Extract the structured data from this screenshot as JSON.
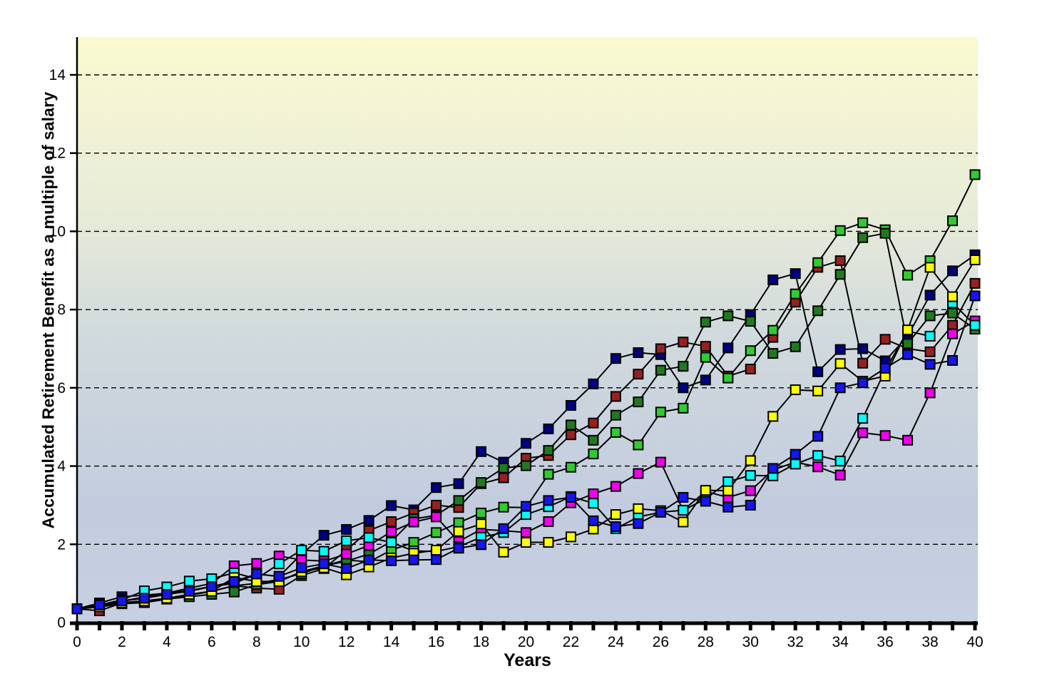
{
  "chart": {
    "y_axis_title": "Accumulated Retirement Benefit as a multiple of salary",
    "x_axis_title": "Years"
  },
  "chart_data": {
    "type": "line",
    "title": "",
    "xlabel": "Years",
    "ylabel": "Accumulated Retirement Benefit as a multiple of salary",
    "xlim": [
      0,
      40
    ],
    "ylim": [
      0,
      15
    ],
    "x_ticks_every": 1,
    "x_labels_every": 2,
    "y_ticks": [
      0,
      2,
      4,
      6,
      8,
      10,
      12,
      14
    ],
    "grid": "horizontal-dashed",
    "legend": "none",
    "marker": "square",
    "marker_size": 13,
    "line_color": "#000000",
    "plot_bg_gradient": [
      "#FAFAD0",
      "#E9EDD8",
      "#D0D9DD",
      "#C2CCDE",
      "#C6D0E2"
    ],
    "x": [
      0,
      1,
      2,
      3,
      4,
      5,
      6,
      7,
      8,
      9,
      10,
      11,
      12,
      13,
      14,
      15,
      16,
      17,
      18,
      19,
      20,
      21,
      22,
      23,
      24,
      25,
      26,
      27,
      28,
      29,
      30,
      31,
      32,
      33,
      34,
      35,
      36,
      37,
      38,
      39,
      40
    ],
    "series": [
      {
        "name": "navy",
        "color": "#000080",
        "values": [
          0.35,
          0.5,
          0.66,
          0.7,
          0.75,
          0.82,
          0.92,
          1.0,
          1.24,
          1.18,
          1.75,
          2.23,
          2.38,
          2.61,
          2.99,
          2.88,
          3.45,
          3.55,
          4.37,
          4.1,
          4.58,
          4.95,
          5.55,
          6.1,
          6.75,
          6.9,
          6.85,
          6.0,
          6.2,
          7.02,
          7.87,
          8.76,
          8.92,
          6.41,
          6.98,
          7.0,
          6.69,
          7.32,
          8.37,
          8.99,
          9.4
        ]
      },
      {
        "name": "dark-red",
        "color": "#992020",
        "values": [
          0.35,
          0.3,
          0.5,
          0.51,
          0.6,
          0.7,
          0.8,
          0.94,
          0.88,
          0.85,
          1.2,
          1.38,
          1.85,
          2.35,
          2.58,
          2.8,
          3.0,
          2.94,
          3.55,
          3.7,
          4.2,
          4.27,
          4.8,
          5.1,
          5.78,
          6.35,
          7.0,
          7.17,
          7.06,
          6.3,
          6.48,
          7.29,
          8.19,
          9.08,
          9.25,
          6.63,
          7.24,
          7.0,
          6.92,
          7.6,
          8.67
        ]
      },
      {
        "name": "bright-green",
        "color": "#2ECC2E",
        "values": [
          0.35,
          0.42,
          0.51,
          0.55,
          0.62,
          0.7,
          0.8,
          0.94,
          1.0,
          1.1,
          1.25,
          1.45,
          1.6,
          1.55,
          1.85,
          2.05,
          2.3,
          2.55,
          2.8,
          2.95,
          2.94,
          3.79,
          3.97,
          4.31,
          4.86,
          4.54,
          5.38,
          5.48,
          6.78,
          6.25,
          6.95,
          7.47,
          8.4,
          9.2,
          10.02,
          10.22,
          10.04,
          8.88,
          9.25,
          10.27,
          11.45
        ]
      },
      {
        "name": "dark-green",
        "color": "#1F7A1F",
        "values": [
          0.35,
          0.4,
          0.48,
          0.51,
          0.6,
          0.66,
          0.72,
          0.78,
          0.97,
          1.05,
          1.3,
          1.45,
          1.57,
          1.75,
          2.07,
          2.65,
          2.74,
          3.12,
          3.58,
          3.95,
          4.01,
          4.4,
          5.05,
          4.66,
          5.3,
          5.64,
          6.45,
          6.55,
          7.68,
          7.84,
          7.7,
          6.88,
          7.05,
          7.97,
          8.9,
          9.84,
          9.95,
          7.13,
          7.84,
          7.91,
          7.5
        ]
      },
      {
        "name": "magenta",
        "color": "#EE00EE",
        "values": [
          0.35,
          0.42,
          0.55,
          0.65,
          0.75,
          0.88,
          1.0,
          1.45,
          1.51,
          1.7,
          1.6,
          1.57,
          1.75,
          1.97,
          2.32,
          2.57,
          2.7,
          2.07,
          2.38,
          2.35,
          2.3,
          2.58,
          3.06,
          3.29,
          3.48,
          3.81,
          4.1,
          2.87,
          3.35,
          3.2,
          3.37,
          3.9,
          4.1,
          3.98,
          3.77,
          4.85,
          4.78,
          4.66,
          5.87,
          7.38,
          7.71
        ]
      },
      {
        "name": "cyan",
        "color": "#00FFFF",
        "values": [
          0.35,
          0.45,
          0.58,
          0.81,
          0.91,
          1.06,
          1.12,
          1.27,
          1.12,
          1.5,
          1.85,
          1.82,
          2.09,
          2.17,
          2.05,
          1.83,
          1.82,
          1.94,
          2.18,
          2.3,
          2.76,
          2.96,
          3.22,
          3.05,
          2.4,
          2.7,
          2.82,
          2.87,
          3.16,
          3.6,
          3.76,
          3.75,
          4.05,
          4.27,
          4.13,
          5.22,
          6.45,
          7.45,
          7.32,
          8.17,
          7.6
        ]
      },
      {
        "name": "yellow",
        "color": "#FFFF00",
        "values": [
          0.35,
          0.4,
          0.5,
          0.55,
          0.62,
          0.72,
          0.8,
          1.15,
          1.05,
          1.05,
          1.3,
          1.4,
          1.22,
          1.42,
          1.65,
          1.77,
          1.85,
          2.33,
          2.52,
          1.8,
          2.05,
          2.05,
          2.19,
          2.39,
          2.76,
          2.91,
          2.86,
          2.57,
          3.38,
          3.37,
          4.14,
          5.27,
          5.95,
          5.92,
          6.62,
          6.17,
          6.3,
          7.48,
          9.08,
          8.33,
          9.27
        ]
      },
      {
        "name": "blue",
        "color": "#1515EE",
        "values": [
          0.35,
          0.45,
          0.55,
          0.62,
          0.72,
          0.8,
          0.92,
          1.05,
          1.24,
          1.18,
          1.4,
          1.5,
          1.38,
          1.6,
          1.58,
          1.6,
          1.61,
          1.9,
          1.99,
          2.4,
          2.97,
          3.12,
          3.2,
          2.6,
          2.45,
          2.53,
          2.82,
          3.2,
          3.1,
          2.95,
          3.0,
          3.94,
          4.3,
          4.76,
          6.0,
          6.13,
          6.5,
          6.85,
          6.6,
          6.7,
          8.35
        ]
      }
    ]
  }
}
